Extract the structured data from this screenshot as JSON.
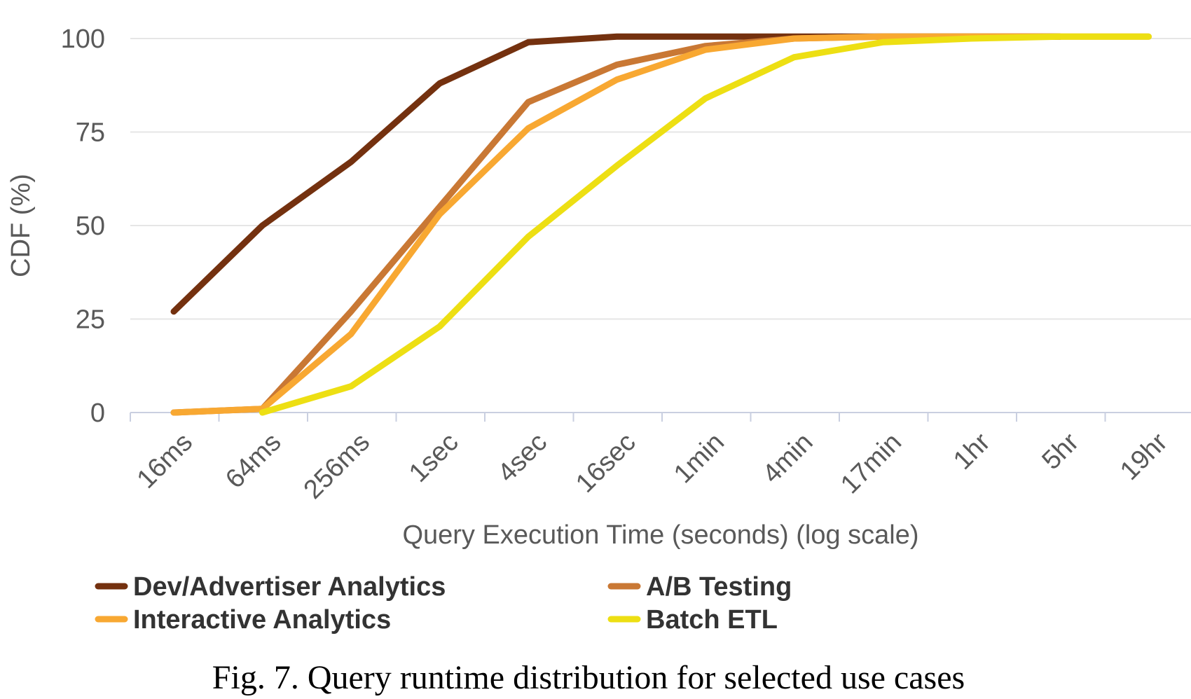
{
  "chart_data": {
    "type": "line",
    "xlabel": "Query Execution Time (seconds) (log scale)",
    "ylabel": "CDF (%)",
    "ylim": [
      0,
      100
    ],
    "yticks": [
      "0",
      "25",
      "50",
      "75",
      "100"
    ],
    "x_scale": "log",
    "categories": [
      "16ms",
      "64ms",
      "256ms",
      "1sec",
      "4sec",
      "16sec",
      "1min",
      "4min",
      "17min",
      "1hr",
      "5hr",
      "19hr"
    ],
    "grid": true,
    "legend_position": "bottom",
    "series": [
      {
        "name": "Dev/Advertiser Analytics",
        "color": "#74310f",
        "points": [
          [
            0,
            27
          ],
          [
            1,
            50
          ],
          [
            2,
            67
          ],
          [
            3,
            88
          ],
          [
            4,
            99
          ],
          [
            5,
            100.5
          ],
          [
            6,
            100.5
          ],
          [
            7,
            100.5
          ],
          [
            8,
            100.5
          ],
          [
            9,
            100.5
          ],
          [
            10,
            100.5
          ]
        ]
      },
      {
        "name": "A/B Testing",
        "color": "#c97834",
        "points": [
          [
            0,
            0
          ],
          [
            1,
            1
          ],
          [
            2,
            27
          ],
          [
            3,
            55
          ],
          [
            4,
            83
          ],
          [
            5,
            93
          ],
          [
            6,
            98
          ],
          [
            7,
            100
          ],
          [
            8,
            100.5
          ],
          [
            9,
            100.5
          ],
          [
            10,
            100.5
          ]
        ]
      },
      {
        "name": "Interactive Analytics",
        "color": "#f8a832",
        "points": [
          [
            0,
            0
          ],
          [
            1,
            1
          ],
          [
            2,
            21
          ],
          [
            3,
            53
          ],
          [
            4,
            76
          ],
          [
            5,
            89
          ],
          [
            6,
            97
          ],
          [
            7,
            100
          ],
          [
            8,
            100.5
          ],
          [
            9,
            100.5
          ],
          [
            10,
            100.5
          ],
          [
            11,
            100.5
          ]
        ]
      },
      {
        "name": "Batch ETL",
        "color": "#eddf13",
        "points": [
          [
            1,
            0
          ],
          [
            2,
            7
          ],
          [
            3,
            23
          ],
          [
            4,
            47
          ],
          [
            5,
            66
          ],
          [
            6,
            84
          ],
          [
            7,
            95
          ],
          [
            8,
            99
          ],
          [
            9,
            100
          ],
          [
            10,
            100.5
          ],
          [
            11,
            100.5
          ]
        ]
      }
    ]
  },
  "caption": "Fig. 7.  Query runtime distribution for selected use cases"
}
